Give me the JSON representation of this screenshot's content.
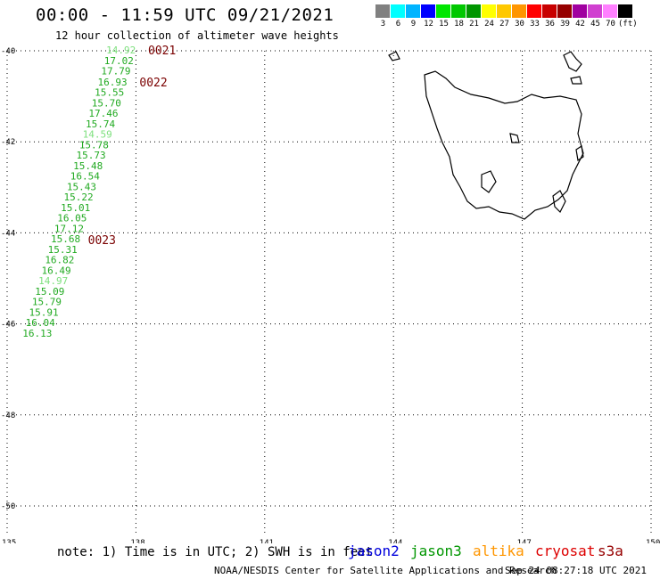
{
  "header": {
    "title": "00:00 - 11:59 UTC 09/21/2021",
    "subtitle": "12 hour collection of altimeter wave heights"
  },
  "colorbar": {
    "colors": [
      "#808080",
      "#00ffff",
      "#00b4ff",
      "#0000ff",
      "#00e600",
      "#00c800",
      "#009600",
      "#ffff00",
      "#ffc800",
      "#ff9600",
      "#ff0000",
      "#c80000",
      "#960000",
      "#a000a0",
      "#d040d0",
      "#ff80ff",
      "#000000"
    ],
    "labels": [
      "3",
      "6",
      "9",
      "12",
      "15",
      "18",
      "21",
      "24",
      "27",
      "30",
      "33",
      "36",
      "39",
      "42",
      "45",
      "70",
      "(ft)"
    ]
  },
  "axes": {
    "lat_labels": [
      "-40",
      "-42",
      "-44",
      "-46",
      "-48",
      "-50"
    ],
    "lon_labels": [
      "135",
      "138",
      "141",
      "144",
      "147",
      "150"
    ]
  },
  "chart_data": {
    "type": "scatter",
    "lat_range": [
      -50,
      -40
    ],
    "lon_range": [
      135,
      150
    ],
    "grid": true,
    "time_labels": [
      {
        "text": "0021",
        "lat": -40.0,
        "lon": 138.2
      },
      {
        "text": "0022",
        "lat": -40.7,
        "lon": 138.0
      },
      {
        "text": "0023",
        "lat": -44.17,
        "lon": 136.8
      }
    ],
    "points": [
      {
        "text": "14.92",
        "lat": -40.0,
        "lon": 137.6,
        "color": "#7ee07e"
      },
      {
        "text": "17.02",
        "lat": -40.23,
        "lon": 137.55,
        "color": "#22aa22"
      },
      {
        "text": "17.79",
        "lat": -40.46,
        "lon": 137.48,
        "color": "#22aa22"
      },
      {
        "text": "16.93",
        "lat": -40.7,
        "lon": 137.4,
        "color": "#22aa22"
      },
      {
        "text": "15.55",
        "lat": -40.93,
        "lon": 137.33,
        "color": "#22aa22"
      },
      {
        "text": "15.70",
        "lat": -41.16,
        "lon": 137.26,
        "color": "#22aa22"
      },
      {
        "text": "17.46",
        "lat": -41.39,
        "lon": 137.19,
        "color": "#22aa22"
      },
      {
        "text": "15.74",
        "lat": -41.62,
        "lon": 137.12,
        "color": "#22aa22"
      },
      {
        "text": "14.59",
        "lat": -41.85,
        "lon": 137.05,
        "color": "#7ee07e"
      },
      {
        "text": "15.78",
        "lat": -42.08,
        "lon": 136.97,
        "color": "#22aa22"
      },
      {
        "text": "15.73",
        "lat": -42.31,
        "lon": 136.9,
        "color": "#22aa22"
      },
      {
        "text": "15.48",
        "lat": -42.54,
        "lon": 136.83,
        "color": "#22aa22"
      },
      {
        "text": "16.54",
        "lat": -42.77,
        "lon": 136.76,
        "color": "#22aa22"
      },
      {
        "text": "15.43",
        "lat": -43.0,
        "lon": 136.68,
        "color": "#22aa22"
      },
      {
        "text": "15.22",
        "lat": -43.23,
        "lon": 136.61,
        "color": "#22aa22"
      },
      {
        "text": "15.01",
        "lat": -43.46,
        "lon": 136.54,
        "color": "#22aa22"
      },
      {
        "text": "16.05",
        "lat": -43.69,
        "lon": 136.46,
        "color": "#22aa22"
      },
      {
        "text": "17.12",
        "lat": -43.92,
        "lon": 136.39,
        "color": "#22aa22"
      },
      {
        "text": "15.68",
        "lat": -44.15,
        "lon": 136.31,
        "color": "#22aa22"
      },
      {
        "text": "15.31",
        "lat": -44.38,
        "lon": 136.24,
        "color": "#22aa22"
      },
      {
        "text": "16.82",
        "lat": -44.61,
        "lon": 136.17,
        "color": "#22aa22"
      },
      {
        "text": "16.49",
        "lat": -44.84,
        "lon": 136.09,
        "color": "#22aa22"
      },
      {
        "text": "14.97",
        "lat": -45.07,
        "lon": 136.02,
        "color": "#7ee07e"
      },
      {
        "text": "15.09",
        "lat": -45.3,
        "lon": 135.94,
        "color": "#22aa22"
      },
      {
        "text": "15.79",
        "lat": -45.53,
        "lon": 135.87,
        "color": "#22aa22"
      },
      {
        "text": "15.91",
        "lat": -45.76,
        "lon": 135.8,
        "color": "#22aa22"
      },
      {
        "text": "16.04",
        "lat": -45.99,
        "lon": 135.72,
        "color": "#22aa22"
      },
      {
        "text": "16.13",
        "lat": -46.22,
        "lon": 135.65,
        "color": "#22aa22"
      }
    ]
  },
  "footer": {
    "note": "note: 1) Time is in UTC; 2) SWH is in feet",
    "satellites": [
      {
        "name": "jason2",
        "color": "#0000dd"
      },
      {
        "name": "jason3",
        "color": "#009600"
      },
      {
        "name": "altika",
        "color": "#ff9600"
      },
      {
        "name": "cryosat",
        "color": "#dd0000"
      },
      {
        "name": "s3a",
        "color": "#960000"
      }
    ],
    "credit": "NOAA/NESDIS Center for Satellite Applications and Research",
    "timestamp": "Sep 24 08:27:18 UTC 2021"
  }
}
